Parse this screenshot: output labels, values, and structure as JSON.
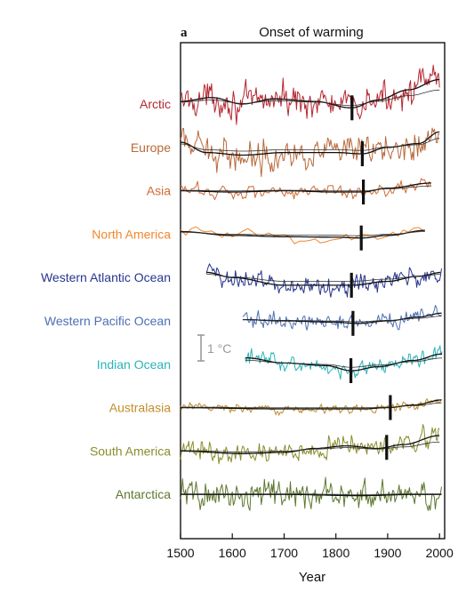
{
  "chart_data": {
    "type": "line",
    "panel_letter": "a",
    "title": "Onset of warming",
    "xlabel": "Year",
    "xlim": [
      1500,
      2010
    ],
    "xticks": [
      1500,
      1600,
      1700,
      1800,
      1900,
      2000
    ],
    "scale_bar": {
      "label": "1 °C",
      "value_c": 1
    },
    "series": [
      {
        "name": "Arctic",
        "color": "#b5262f",
        "start": 1500,
        "end": 2000,
        "step": 2,
        "onset": 1831,
        "noise": 0.45,
        "level": 0.0,
        "trend": [
          [
            1500,
            0.1
          ],
          [
            1560,
            0.25
          ],
          [
            1620,
            0.0
          ],
          [
            1680,
            0.2
          ],
          [
            1760,
            0.1
          ],
          [
            1830,
            -0.15
          ],
          [
            1880,
            0.15
          ],
          [
            1940,
            0.55
          ],
          [
            2000,
            0.95
          ]
        ]
      },
      {
        "name": "Europe",
        "color": "#b8693a",
        "start": 1500,
        "end": 2000,
        "step": 2,
        "onset": 1851,
        "noise": 0.45,
        "level": 0.0,
        "trend": [
          [
            1500,
            0.2
          ],
          [
            1550,
            -0.2
          ],
          [
            1620,
            -0.3
          ],
          [
            1700,
            -0.2
          ],
          [
            1800,
            -0.2
          ],
          [
            1850,
            -0.25
          ],
          [
            1900,
            0.0
          ],
          [
            1960,
            0.15
          ],
          [
            2000,
            0.6
          ]
        ]
      },
      {
        "name": "Asia",
        "color": "#d26a32",
        "start": 1500,
        "end": 1985,
        "step": 3,
        "onset": 1853,
        "noise": 0.22,
        "level": 0.0,
        "trend": [
          [
            1500,
            0.0
          ],
          [
            1600,
            -0.05
          ],
          [
            1700,
            0.0
          ],
          [
            1800,
            -0.05
          ],
          [
            1850,
            -0.05
          ],
          [
            1900,
            0.1
          ],
          [
            1985,
            0.3
          ]
        ]
      },
      {
        "name": "North America",
        "color": "#f2862e",
        "start": 1500,
        "end": 1975,
        "step": 10,
        "onset": 1849,
        "noise": 0.22,
        "level": 0.0,
        "trend": [
          [
            1500,
            0.1
          ],
          [
            1600,
            -0.05
          ],
          [
            1700,
            -0.1
          ],
          [
            1800,
            -0.12
          ],
          [
            1850,
            -0.15
          ],
          [
            1900,
            -0.05
          ],
          [
            1975,
            0.15
          ]
        ]
      },
      {
        "name": "Western Atlantic Ocean",
        "color": "#27368f",
        "start": 1550,
        "end": 2005,
        "step": 2,
        "onset": 1830,
        "noise": 0.3,
        "level": 0.0,
        "trend": [
          [
            1550,
            0.2
          ],
          [
            1600,
            0.0
          ],
          [
            1700,
            -0.3
          ],
          [
            1800,
            -0.3
          ],
          [
            1830,
            -0.3
          ],
          [
            1900,
            -0.15
          ],
          [
            1960,
            0.05
          ],
          [
            2005,
            0.2
          ]
        ]
      },
      {
        "name": "Western Pacific Ocean",
        "color": "#4b6fb5",
        "start": 1620,
        "end": 2005,
        "step": 2,
        "onset": 1833,
        "noise": 0.22,
        "level": 0.0,
        "trend": [
          [
            1620,
            0.05
          ],
          [
            1700,
            0.0
          ],
          [
            1800,
            -0.05
          ],
          [
            1840,
            -0.1
          ],
          [
            1900,
            0.0
          ],
          [
            1960,
            0.15
          ],
          [
            2005,
            0.3
          ]
        ]
      },
      {
        "name": "Indian Ocean",
        "color": "#2bb3b8",
        "start": 1625,
        "end": 2005,
        "step": 2,
        "onset": 1829,
        "noise": 0.22,
        "level": 0.0,
        "trend": [
          [
            1625,
            0.25
          ],
          [
            1700,
            0.05
          ],
          [
            1780,
            -0.05
          ],
          [
            1830,
            -0.25
          ],
          [
            1880,
            -0.1
          ],
          [
            1950,
            0.15
          ],
          [
            2005,
            0.4
          ]
        ]
      },
      {
        "name": "Australasia",
        "color": "#c28e2c",
        "start": 1500,
        "end": 2005,
        "step": 2,
        "onset": 1905,
        "noise": 0.12,
        "level": 0.0,
        "trend": [
          [
            1500,
            0.0
          ],
          [
            1700,
            -0.05
          ],
          [
            1850,
            -0.05
          ],
          [
            1900,
            0.0
          ],
          [
            1950,
            0.1
          ],
          [
            2005,
            0.3
          ]
        ]
      },
      {
        "name": "South America",
        "color": "#8a8d2d",
        "start": 1500,
        "end": 2000,
        "step": 2,
        "onset": 1898,
        "noise": 0.3,
        "level": 0.0,
        "trend": [
          [
            1500,
            0.0
          ],
          [
            1620,
            -0.1
          ],
          [
            1700,
            -0.05
          ],
          [
            1760,
            0.1
          ],
          [
            1820,
            0.2
          ],
          [
            1880,
            0.1
          ],
          [
            1930,
            0.25
          ],
          [
            2000,
            0.6
          ]
        ]
      },
      {
        "name": "Antarctica",
        "color": "#5e7730",
        "start": 1500,
        "end": 2005,
        "step": 2,
        "onset": null,
        "noise": 0.42,
        "level": 0.0,
        "trend": [
          [
            1500,
            0.0
          ],
          [
            1700,
            0.0
          ],
          [
            1850,
            -0.05
          ],
          [
            1950,
            0.0
          ],
          [
            2005,
            0.0
          ]
        ]
      }
    ]
  }
}
